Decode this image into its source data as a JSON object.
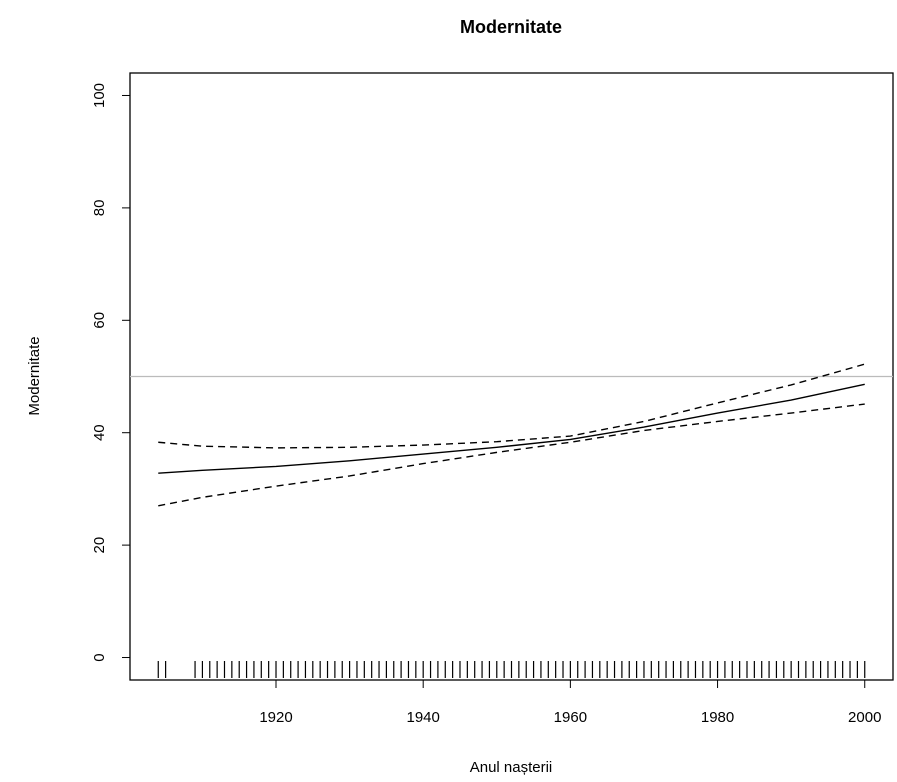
{
  "chart_data": {
    "type": "line",
    "title": "Modernitate",
    "xlabel": "Anul nașterii",
    "ylabel": "Modernitate",
    "x": [
      1904,
      1910,
      1920,
      1930,
      1940,
      1950,
      1960,
      1970,
      1980,
      1990,
      2000
    ],
    "series": [
      {
        "color": "#000000",
        "dashed": false,
        "values": [
          32.8,
          33.3,
          34.0,
          35.0,
          36.2,
          37.4,
          38.8,
          41.0,
          43.5,
          45.8,
          48.6
        ]
      },
      {
        "color": "#000000",
        "dashed": true,
        "values": [
          38.3,
          37.6,
          37.3,
          37.4,
          37.8,
          38.4,
          39.4,
          42.0,
          45.3,
          48.5,
          52.2
        ]
      },
      {
        "color": "#000000",
        "dashed": true,
        "values": [
          27.0,
          28.5,
          30.5,
          32.3,
          34.5,
          36.5,
          38.3,
          40.4,
          42.0,
          43.5,
          45.1
        ]
      }
    ],
    "hline": 50,
    "hline_color": "#bbbbbb",
    "rug": [
      1904,
      1905,
      1909,
      1910,
      1911,
      1912,
      1913,
      1914,
      1915,
      1916,
      1917,
      1918,
      1919,
      1920,
      1921,
      1922,
      1923,
      1924,
      1925,
      1926,
      1927,
      1928,
      1929,
      1930,
      1931,
      1932,
      1933,
      1934,
      1935,
      1936,
      1937,
      1938,
      1939,
      1940,
      1941,
      1942,
      1943,
      1944,
      1945,
      1946,
      1947,
      1948,
      1949,
      1950,
      1951,
      1952,
      1953,
      1954,
      1955,
      1956,
      1957,
      1958,
      1959,
      1960,
      1961,
      1962,
      1963,
      1964,
      1965,
      1966,
      1967,
      1968,
      1969,
      1970,
      1971,
      1972,
      1973,
      1974,
      1975,
      1976,
      1977,
      1978,
      1979,
      1980,
      1981,
      1982,
      1983,
      1984,
      1985,
      1986,
      1987,
      1988,
      1989,
      1990,
      1991,
      1992,
      1993,
      1994,
      1995,
      1996,
      1997,
      1998,
      1999,
      2000
    ],
    "xlim": [
      1900.16,
      2003.84
    ],
    "xticks": [
      1920,
      1940,
      1960,
      1980,
      2000
    ],
    "ylim": [
      -4,
      104
    ],
    "yticks": [
      0,
      20,
      40,
      60,
      80,
      100
    ]
  }
}
